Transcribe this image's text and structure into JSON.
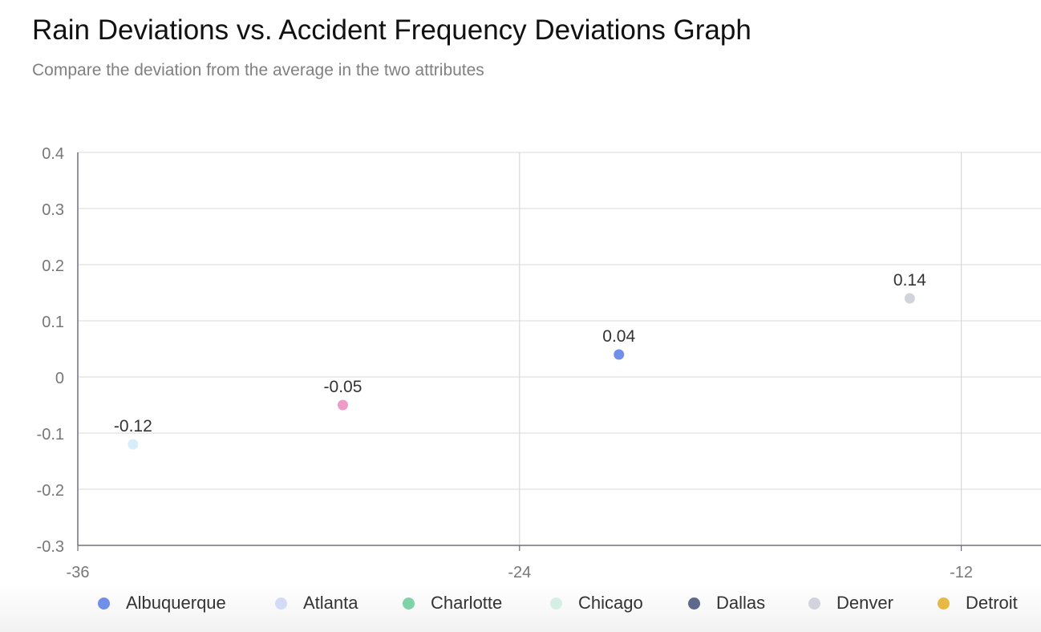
{
  "chart_data": {
    "type": "scatter",
    "title": "Rain Deviations vs. Accident Frequency Deviations Graph",
    "subtitle": "Compare the deviation from the average in the two attributes",
    "xlabel": "",
    "ylabel": "",
    "xlim": [
      -36,
      -9.8
    ],
    "ylim": [
      -0.3,
      0.4
    ],
    "x_ticks": [
      -36,
      -24,
      -12
    ],
    "y_ticks": [
      0.4,
      0.3,
      0.2,
      0.1,
      0,
      -0.1,
      -0.2,
      -0.3
    ],
    "grid": true,
    "legend_position": "bottom",
    "series": [
      {
        "name": "Albuquerque",
        "color": "#6f8fe8",
        "points": [
          {
            "x": -21.3,
            "y": 0.04,
            "label": "0.04"
          }
        ]
      },
      {
        "name": "Atlanta",
        "color": "#d3dbf6",
        "points": []
      },
      {
        "name": "Charlotte",
        "color": "#7fd3a6",
        "points": []
      },
      {
        "name": "Chicago",
        "color": "#d5efe5",
        "points": []
      },
      {
        "name": "Dallas",
        "color": "#5e6a8c",
        "points": []
      },
      {
        "name": "Denver",
        "color": "#d1d4dc",
        "points": [
          {
            "x": -13.4,
            "y": 0.14,
            "label": "0.14"
          }
        ]
      },
      {
        "name": "Detroit",
        "color": "#e7b843",
        "points": []
      },
      {
        "name": "",
        "color": "#ee9cc7",
        "points": [
          {
            "x": -28.8,
            "y": -0.05,
            "label": "-0.05"
          }
        ]
      },
      {
        "name": "",
        "color": "#d6eefa",
        "points": [
          {
            "x": -34.5,
            "y": -0.12,
            "label": "-0.12"
          }
        ]
      }
    ]
  }
}
